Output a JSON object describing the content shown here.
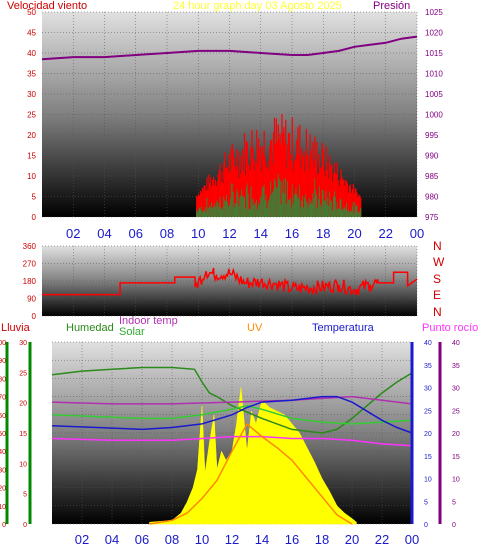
{
  "header": {
    "wind_label": "Velocidad viento",
    "title": "24 hour graph day   03 Agosto 2025",
    "pressure_label": "Presión"
  },
  "legend": {
    "rain": "Lluvia",
    "humidity": "Humedad",
    "indoor_temp": "Indoor temp",
    "solar": "Solar",
    "uv": "UV",
    "temperature": "Temperatura",
    "dew_point": "Punto rocío"
  },
  "compass": [
    "N",
    "W",
    "S",
    "E",
    "N"
  ],
  "colors": {
    "wind_avg": "#ff0000",
    "wind_gust": "#2d8a3a",
    "wind_dir": "#ff0000",
    "pressure": "#800080",
    "humidity": "#2a8a1a",
    "indoor_temp": "#b030b0",
    "temp_green": "#33cc33",
    "temperature": "#1a1acc",
    "dew_point": "#ff33ff",
    "solar": "#ffff00",
    "uv": "#ff8800",
    "rain_axis": "#008800",
    "purple_axis": "#800080"
  },
  "chart_data": [
    {
      "type": "line",
      "name": "wind-pressure",
      "x_ticks": [
        "02",
        "04",
        "06",
        "08",
        "10",
        "12",
        "14",
        "16",
        "18",
        "20",
        "22",
        "00"
      ],
      "left_axis": {
        "min": 0,
        "max": 50,
        "ticks": [
          "0",
          "5",
          "10",
          "15",
          "20",
          "25",
          "30",
          "35",
          "40",
          "45",
          "50"
        ]
      },
      "right_axis": {
        "min": 975,
        "max": 1025,
        "ticks": [
          "975",
          "980",
          "985",
          "990",
          "995",
          "1000",
          "1005",
          "1010",
          "1015",
          "1020",
          "1025"
        ]
      },
      "series": [
        {
          "name": "Presión",
          "axis": "right",
          "x": [
            0,
            2,
            4,
            6,
            8,
            10,
            12,
            14,
            16,
            17,
            18,
            19,
            20,
            21,
            22,
            23,
            24
          ],
          "values": [
            1013.5,
            1014,
            1014,
            1014.5,
            1015,
            1015.5,
            1015.5,
            1015,
            1014.5,
            1014.5,
            1015,
            1015.5,
            1016.5,
            1017,
            1017.5,
            1018.5,
            1019
          ]
        }
      ]
    },
    {
      "type": "line",
      "name": "wind-direction",
      "x_ticks": [
        "02",
        "04",
        "06",
        "08",
        "10",
        "12",
        "14",
        "16",
        "18",
        "20",
        "22",
        "00"
      ],
      "y_axis": {
        "min": 0,
        "max": 360,
        "ticks": [
          "0",
          "90",
          "180",
          "270",
          "360"
        ]
      },
      "series": [
        {
          "x": [
            0,
            5,
            5,
            8.5,
            8.5,
            9.8,
            9.8,
            10.5,
            11,
            12,
            13,
            14,
            15,
            16,
            17,
            18,
            19,
            20,
            21,
            21.5,
            22.5,
            22.5,
            23.4,
            23.4,
            24
          ],
          "values": [
            110,
            110,
            170,
            170,
            200,
            200,
            150,
            230,
            215,
            220,
            170,
            175,
            165,
            140,
            145,
            150,
            160,
            135,
            160,
            170,
            170,
            225,
            225,
            155,
            190
          ]
        }
      ]
    },
    {
      "type": "line",
      "name": "multi-sensor",
      "x_ticks": [
        "02",
        "04",
        "06",
        "08",
        "10",
        "12",
        "14",
        "16",
        "18",
        "20",
        "22",
        "00"
      ],
      "rain_axis": {
        "min": 0,
        "max": 100,
        "ticks": [
          "0",
          "10",
          "20",
          "30",
          "40",
          "50",
          "60",
          "70",
          "80",
          "90",
          "100"
        ]
      },
      "humidity_axis": {
        "min": 0,
        "max": 30,
        "ticks": [
          "0",
          "5",
          "10",
          "15",
          "20",
          "25",
          "30"
        ]
      },
      "temp_axis": {
        "min": 0,
        "max": 40,
        "ticks": [
          "0",
          "5",
          "10",
          "15",
          "20",
          "25",
          "30",
          "35",
          "40"
        ]
      },
      "series": [
        {
          "name": "Humedad",
          "axis": "rain",
          "x": [
            0,
            2,
            4,
            6,
            8,
            9.5,
            10,
            10.5,
            11,
            12,
            14,
            16,
            18,
            19,
            20,
            21,
            22,
            23,
            24
          ],
          "values": [
            82,
            84,
            85,
            86,
            86,
            85,
            78,
            72,
            70,
            65,
            58,
            52,
            50,
            52,
            58,
            65,
            72,
            78,
            83
          ]
        },
        {
          "name": "Indoor temp",
          "axis": "rain",
          "x": [
            0,
            4,
            8,
            12,
            16,
            18,
            20,
            22,
            24
          ],
          "values": [
            67,
            66,
            66,
            67,
            68,
            69,
            70,
            68,
            66
          ]
        },
        {
          "name": "Solar-green",
          "axis": "rain",
          "x": [
            0,
            3,
            6,
            8,
            10,
            12,
            13,
            14,
            16,
            18,
            20,
            22,
            24
          ],
          "values": [
            60,
            59,
            58,
            58,
            60,
            63,
            65,
            63,
            58,
            56,
            55,
            56,
            57
          ]
        },
        {
          "name": "Temperatura",
          "axis": "rain",
          "x": [
            0,
            3,
            6,
            8,
            10,
            12,
            13,
            14,
            16,
            18,
            19,
            20,
            21,
            22,
            23,
            24
          ],
          "values": [
            54,
            53,
            52,
            53,
            55,
            60,
            64,
            67,
            68,
            70,
            70,
            67,
            62,
            57,
            53,
            50
          ]
        },
        {
          "name": "Punto rocío",
          "axis": "rain",
          "x": [
            0,
            4,
            8,
            10,
            12,
            14,
            16,
            18,
            20,
            22,
            24
          ],
          "values": [
            47,
            46,
            46,
            47,
            48,
            48,
            47,
            47,
            46,
            44,
            43
          ]
        },
        {
          "name": "Solar",
          "axis": "rain",
          "type": "area",
          "x": [
            6.5,
            8,
            8.6,
            9.0,
            9.4,
            9.7,
            10.0,
            10.2,
            10.5,
            10.8,
            11.0,
            11.3,
            11.6,
            12.0,
            12.3,
            12.6,
            13.0,
            13.3,
            13.6,
            14.0,
            14.5,
            15.0,
            15.5,
            16.0,
            16.5,
            17.0,
            17.5,
            18.0,
            18.5,
            19.0,
            19.5,
            20.0,
            20.3
          ],
          "values": [
            1,
            2,
            6,
            12,
            20,
            30,
            65,
            28,
            45,
            60,
            30,
            40,
            35,
            40,
            55,
            75,
            40,
            62,
            55,
            68,
            64,
            62,
            60,
            55,
            50,
            42,
            34,
            25,
            18,
            10,
            6,
            3,
            1
          ]
        },
        {
          "name": "UV",
          "axis": "rain",
          "x": [
            6.5,
            8,
            9,
            10,
            11,
            12,
            13,
            14,
            15,
            16,
            17,
            18,
            19,
            20
          ],
          "values": [
            0,
            2,
            6,
            14,
            24,
            40,
            55,
            48,
            42,
            35,
            25,
            15,
            5,
            0
          ]
        }
      ]
    }
  ]
}
